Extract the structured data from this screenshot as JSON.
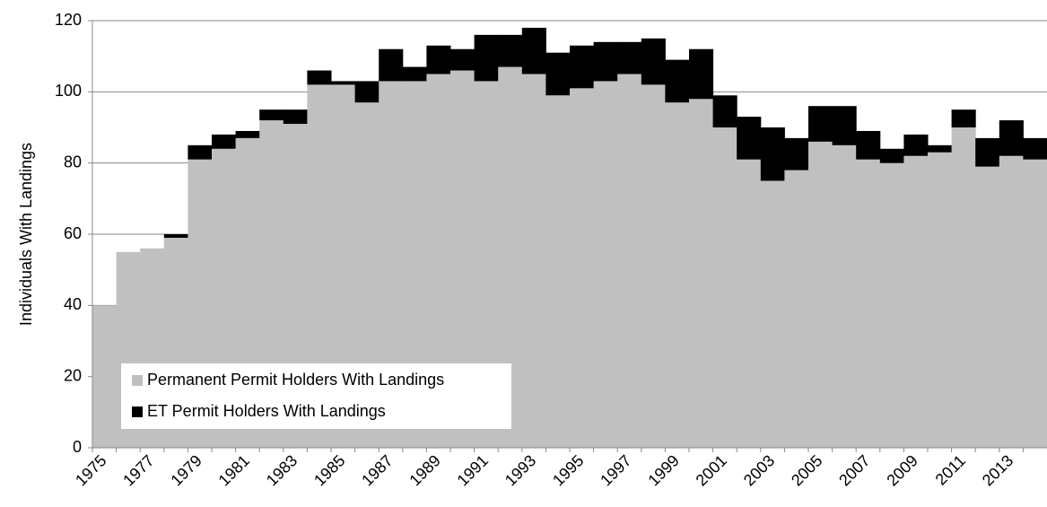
{
  "chart_data": {
    "type": "stacked-bar",
    "y_label": "Individuals With Landings",
    "categories": [
      "1975",
      null,
      "1977",
      null,
      "1979",
      null,
      "1981",
      null,
      "1983",
      null,
      "1985",
      null,
      "1987",
      null,
      "1989",
      null,
      "1991",
      null,
      "1993",
      null,
      "1995",
      null,
      "1997",
      null,
      "1999",
      null,
      "2001",
      null,
      "2003",
      null,
      "2005",
      null,
      "2007",
      null,
      "2009",
      null,
      "2011",
      null,
      "2013",
      null
    ],
    "series": [
      {
        "name": "Permanent Permit Holders With Landings",
        "color": "#c0c0c0",
        "values": [
          40,
          55,
          56,
          59,
          81,
          84,
          87,
          92,
          91,
          102,
          102,
          97,
          103,
          103,
          105,
          106,
          103,
          107,
          105,
          99,
          101,
          103,
          105,
          102,
          97,
          98,
          90,
          81,
          75,
          78,
          86,
          85,
          81,
          80,
          82,
          83,
          90,
          79,
          82,
          81
        ]
      },
      {
        "name": "ET Permit Holders With Landings",
        "color": "#000000",
        "values": [
          0,
          0,
          0,
          1,
          4,
          4,
          2,
          3,
          4,
          4,
          1,
          6,
          9,
          4,
          8,
          6,
          13,
          9,
          13,
          12,
          12,
          11,
          9,
          13,
          12,
          14,
          9,
          12,
          15,
          9,
          10,
          11,
          8,
          4,
          6,
          2,
          5,
          8,
          10,
          6
        ]
      }
    ],
    "ylim": [
      0,
      120
    ],
    "yticks": [
      0,
      20,
      40,
      60,
      80,
      100,
      120
    ],
    "grid": true,
    "legend": "lower-left"
  }
}
